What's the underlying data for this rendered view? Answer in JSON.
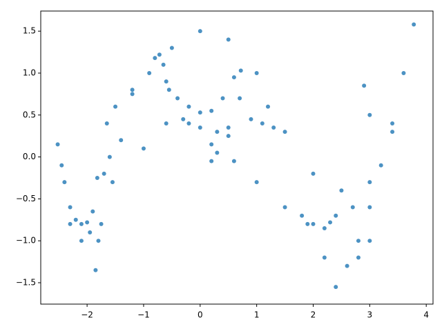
{
  "chart_data": {
    "type": "scatter",
    "color": "#1f77b4",
    "x": [
      -2.52,
      -2.45,
      -2.4,
      -2.3,
      -2.2,
      -2.1,
      -2.0,
      -1.9,
      -1.82,
      -2.3,
      -2.1,
      -1.95,
      -1.85,
      -1.8,
      -1.75,
      -1.7,
      -1.65,
      -1.6,
      -1.55,
      -0.9,
      -0.8,
      -0.72,
      -0.65,
      -0.55,
      -0.4,
      -0.2,
      0,
      0.2,
      0.4,
      0.6,
      0.72,
      0.7,
      0.5,
      0.3,
      0.2,
      -0.6,
      -0.3,
      0,
      0.3,
      0.5,
      -1.0,
      -0.6,
      -0.2,
      0.2,
      0.6,
      1.0,
      1.5,
      1.9,
      2.2,
      2.4,
      2.6,
      2.8,
      3.0,
      3.2,
      3.4,
      3.6,
      3.78,
      -1.5,
      -1.2,
      -0.5,
      0,
      0.5,
      1.0,
      1.5,
      2.0,
      2.5,
      3.0,
      3.4,
      1.8,
      2.0,
      2.3,
      2.4,
      2.2,
      2.9,
      3.0,
      2.7,
      2.8,
      3.0,
      1.2,
      1.3,
      1.1,
      0.9,
      -1.4,
      -1.2
    ],
    "y": [
      0.15,
      -0.1,
      -0.3,
      -0.6,
      -0.75,
      -0.8,
      -0.78,
      -0.65,
      -0.25,
      -0.8,
      -1.0,
      -0.9,
      -1.35,
      -1.0,
      -0.8,
      -0.2,
      0.4,
      0.0,
      -0.3,
      1.0,
      1.18,
      1.22,
      1.1,
      0.8,
      0.7,
      0.6,
      0.53,
      0.55,
      0.7,
      0.95,
      1.03,
      0.7,
      0.35,
      0.05,
      -0.05,
      0.9,
      0.45,
      0.35,
      0.3,
      0.25,
      0.1,
      0.4,
      0.4,
      0.15,
      -0.05,
      -0.3,
      -0.6,
      -0.8,
      -1.2,
      -1.55,
      -1.3,
      -1.0,
      -0.6,
      -0.1,
      0.4,
      1.0,
      1.58,
      0.6,
      0.8,
      1.3,
      1.5,
      1.4,
      1.0,
      0.3,
      -0.2,
      -0.4,
      -0.3,
      0.3,
      -0.7,
      -0.8,
      -0.78,
      -0.7,
      -0.85,
      0.85,
      0.5,
      -0.6,
      -1.2,
      -1.0,
      0.6,
      0.35,
      0.4,
      0.45,
      0.2,
      0.75
    ],
    "xlim": [
      -2.82,
      4.12
    ],
    "ylim": [
      -1.755,
      1.74
    ],
    "xticks": [
      {
        "value": -2,
        "label": "−2"
      },
      {
        "value": -1,
        "label": "−1"
      },
      0,
      1,
      2,
      3,
      4
    ],
    "yticks": [
      {
        "value": -1.5,
        "label": "−1.5"
      },
      {
        "value": -1,
        "label": "−1.0"
      },
      {
        "value": -0.5,
        "label": "−0.5"
      },
      {
        "value": 0,
        "label": "0.0"
      },
      0.5,
      {
        "value": 1,
        "label": "1.0"
      },
      1.5
    ]
  }
}
